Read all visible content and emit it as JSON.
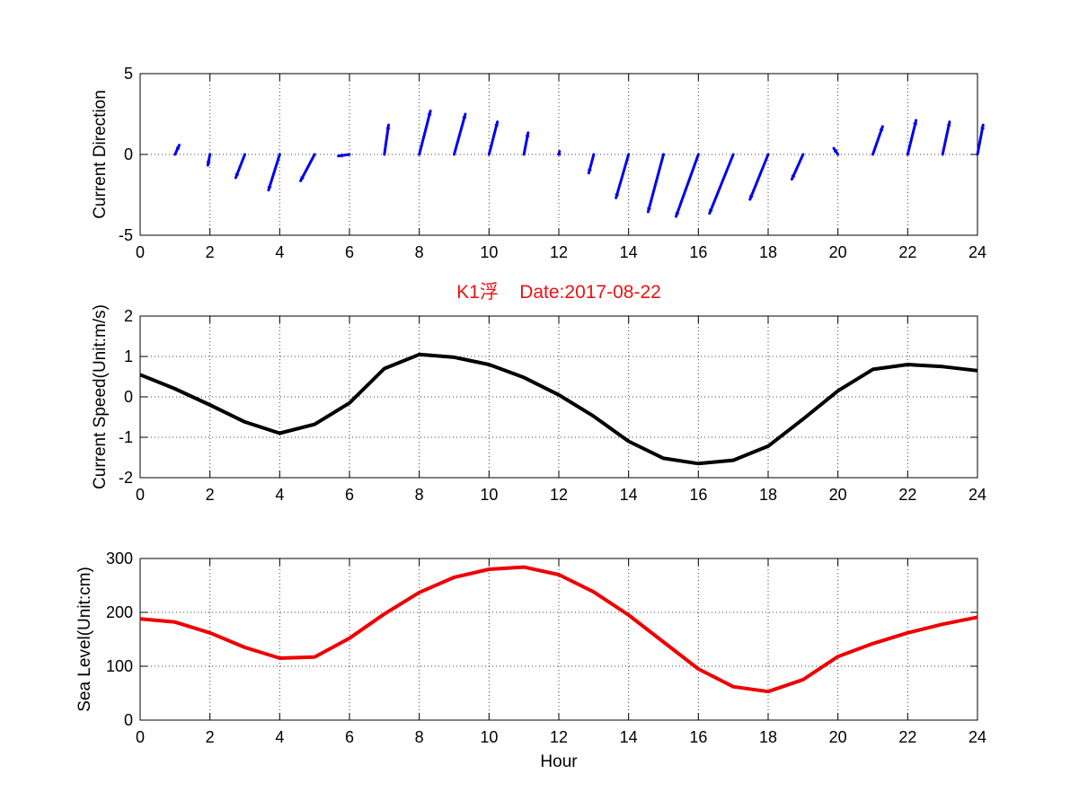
{
  "chart_data": [
    {
      "type": "quiver",
      "x": [
        1,
        2,
        3,
        4,
        5,
        6,
        7,
        8,
        9,
        10,
        11,
        12,
        13,
        14,
        15,
        16,
        17,
        18,
        19,
        20,
        21,
        22,
        23,
        24
      ],
      "u": [
        -0.3,
        0.15,
        0.65,
        0.8,
        1.0,
        0.8,
        -0.3,
        -0.8,
        -0.8,
        -0.6,
        -0.3,
        -0.05,
        0.35,
        0.9,
        1.1,
        1.6,
        1.7,
        1.3,
        0.8,
        0.3,
        -0.7,
        -0.6,
        -0.5,
        -0.4
      ],
      "v": [
        0.6,
        -0.7,
        -1.5,
        -2.3,
        -1.7,
        -0.1,
        1.9,
        2.8,
        2.6,
        2.1,
        1.4,
        0.2,
        -1.2,
        -2.8,
        -3.7,
        -4.0,
        -3.8,
        -2.9,
        -1.6,
        0.4,
        1.8,
        2.2,
        2.1,
        1.9
      ],
      "ylabel": "Current Direction",
      "xlim": [
        0,
        24
      ],
      "ylim": [
        -5,
        5
      ],
      "xticks": [
        0,
        2,
        4,
        6,
        8,
        10,
        12,
        14,
        16,
        18,
        20,
        22,
        24
      ],
      "yticks": [
        -5,
        0,
        5
      ],
      "grid": true,
      "color": "#0000ee"
    },
    {
      "type": "line",
      "title": "K1浮    Date:2017-08-22",
      "title_color": "#ee1111",
      "x": [
        0,
        1,
        2,
        3,
        4,
        5,
        6,
        7,
        8,
        9,
        10,
        11,
        12,
        13,
        14,
        15,
        16,
        17,
        18,
        19,
        20,
        21,
        22,
        23,
        24
      ],
      "y": [
        0.55,
        0.2,
        -0.2,
        -0.62,
        -0.9,
        -0.68,
        -0.15,
        0.7,
        1.05,
        0.98,
        0.8,
        0.48,
        0.05,
        -0.48,
        -1.1,
        -1.52,
        -1.65,
        -1.57,
        -1.22,
        -0.55,
        0.15,
        0.68,
        0.8,
        0.75,
        0.65
      ],
      "ylabel": "Current Speed(Unit:m/s)",
      "xlim": [
        0,
        24
      ],
      "ylim": [
        -2,
        2
      ],
      "xticks": [
        0,
        2,
        4,
        6,
        8,
        10,
        12,
        14,
        16,
        18,
        20,
        22,
        24
      ],
      "yticks": [
        -2,
        -1,
        0,
        1,
        2
      ],
      "grid": true,
      "color": "#000000"
    },
    {
      "type": "line",
      "x": [
        0,
        1,
        2,
        3,
        4,
        5,
        6,
        7,
        8,
        9,
        10,
        11,
        12,
        13,
        14,
        15,
        16,
        17,
        18,
        19,
        20,
        21,
        22,
        23,
        24
      ],
      "y": [
        188,
        182,
        162,
        135,
        115,
        117,
        152,
        197,
        237,
        265,
        280,
        284,
        270,
        238,
        195,
        145,
        95,
        62,
        53,
        75,
        118,
        142,
        162,
        178,
        191
      ],
      "ylabel": "Sea Level(Unit:cm)",
      "xlabel": "Hour",
      "xlim": [
        0,
        24
      ],
      "ylim": [
        0,
        300
      ],
      "xticks": [
        0,
        2,
        4,
        6,
        8,
        10,
        12,
        14,
        16,
        18,
        20,
        22,
        24
      ],
      "yticks": [
        0,
        100,
        200,
        300
      ],
      "grid": true,
      "color": "#ee0000"
    }
  ]
}
